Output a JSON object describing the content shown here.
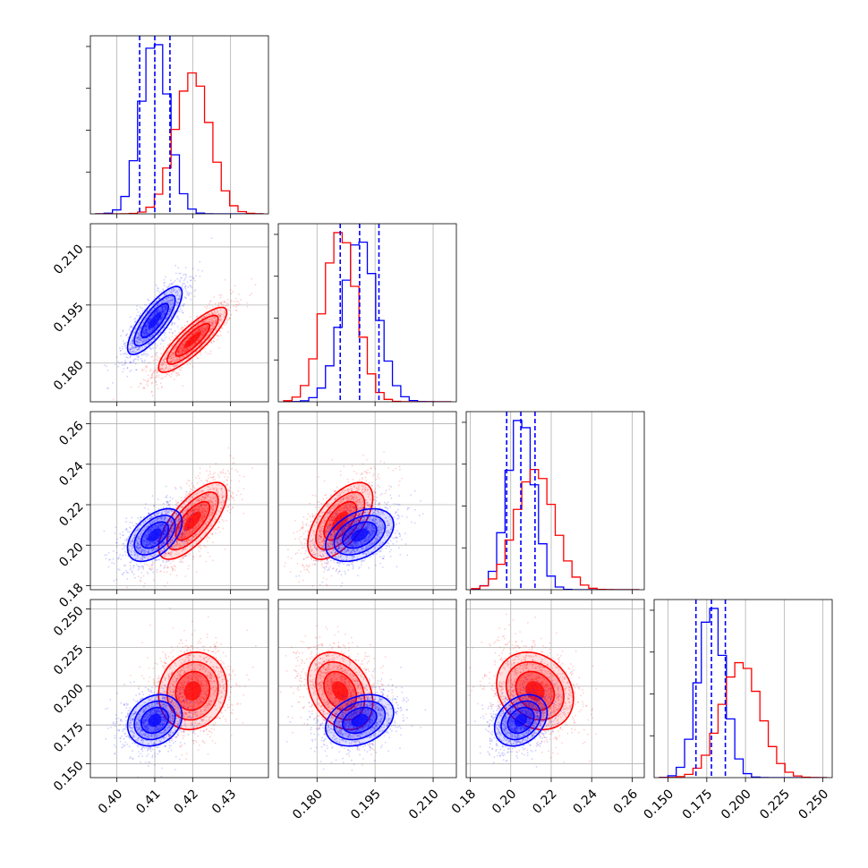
{
  "chart_data": {
    "type": "corner",
    "grid": true,
    "colors": {
      "series_a": "#0000ff",
      "series_b": "#ff0000"
    },
    "parameters": [
      {
        "range": [
          0.393,
          0.44
        ],
        "ticks": [
          0.4,
          0.41,
          0.42,
          0.43
        ],
        "tick_labels": [
          "0.40",
          "0.41",
          "0.42",
          "0.43"
        ]
      },
      {
        "range": [
          0.17,
          0.216
        ],
        "ticks": [
          0.18,
          0.195,
          0.21
        ],
        "tick_labels": [
          "0.180",
          "0.195",
          "0.210"
        ]
      },
      {
        "range": [
          0.178,
          0.266
        ],
        "ticks": [
          0.18,
          0.2,
          0.22,
          0.24,
          0.26
        ],
        "tick_labels": [
          "0.18",
          "0.20",
          "0.22",
          "0.24",
          "0.26"
        ]
      },
      {
        "range": [
          0.141,
          0.256
        ],
        "ticks": [
          0.15,
          0.175,
          0.2,
          0.225,
          0.25
        ],
        "tick_labels": [
          "0.150",
          "0.175",
          "0.200",
          "0.225",
          "0.250"
        ]
      }
    ],
    "series": [
      {
        "color": "#0000ff",
        "mean": [
          0.41,
          0.191,
          0.205,
          0.178
        ],
        "sd": [
          0.0036,
          0.0044,
          0.0065,
          0.0083
        ],
        "corr": [
          [
            1,
            0.8,
            0.5,
            0.2
          ],
          [
            0.8,
            1,
            0.4,
            0.3
          ],
          [
            0.5,
            0.4,
            1,
            0.3
          ],
          [
            0.2,
            0.3,
            0.3,
            1
          ]
        ],
        "quantiles": [
          [
            0.406,
            0.41,
            0.414
          ],
          [
            0.186,
            0.191,
            0.196
          ],
          [
            0.198,
            0.205,
            0.212
          ],
          [
            0.168,
            0.178,
            0.187
          ]
        ]
      },
      {
        "color": "#ff0000",
        "mean": [
          0.42,
          0.186,
          0.212,
          0.197
        ],
        "sd": [
          0.0045,
          0.0042,
          0.0095,
          0.0125
        ],
        "corr": [
          [
            1,
            0.85,
            0.7,
            0.1
          ],
          [
            0.85,
            1,
            0.6,
            -0.3
          ],
          [
            0.7,
            0.6,
            1,
            -0.2
          ],
          [
            0.1,
            -0.3,
            -0.2,
            1
          ]
        ]
      }
    ]
  }
}
